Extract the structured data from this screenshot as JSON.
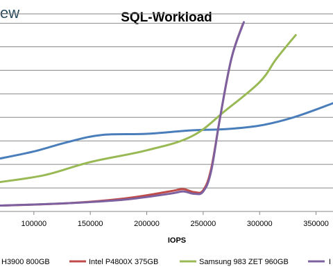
{
  "logo": {
    "text": "ew"
  },
  "chart_data": {
    "type": "line",
    "title": "SQL-Workload",
    "xlabel": "IOPS",
    "ylabel": "",
    "xlim": [
      70000,
      365000
    ],
    "ylim": [
      0,
      8.4
    ],
    "grid": true,
    "legend_position": "bottom",
    "x_ticks": [
      100000,
      150000,
      200000,
      250000,
      300000,
      350000
    ],
    "x_tick_labels": [
      "100000",
      "150000",
      "200000",
      "250000",
      "300000",
      "350000"
    ],
    "y_gridlines": [
      1,
      2,
      3,
      4,
      5,
      6,
      7,
      8
    ],
    "series": [
      {
        "name": "H3900 800GB",
        "color": "#4a7ebb",
        "x": [
          70000,
          100000,
          130000,
          160000,
          200000,
          240000,
          270000,
          300000,
          330000,
          365000
        ],
        "y": [
          2.25,
          2.55,
          2.95,
          3.25,
          3.3,
          3.45,
          3.5,
          3.65,
          4.0,
          4.6
        ]
      },
      {
        "name": "Intel P4800X 375GB",
        "color": "#be4b48",
        "x": [
          70000,
          130000,
          180000,
          220000,
          232000,
          242000,
          250000,
          257000,
          265000,
          275000,
          285000
        ],
        "y": [
          0.25,
          0.35,
          0.55,
          0.85,
          0.95,
          0.82,
          0.9,
          1.8,
          4.0,
          6.5,
          7.95
        ]
      },
      {
        "name": "Samsung 983 ZET 960GB",
        "color": "#98b954",
        "x": [
          70000,
          110000,
          150000,
          200000,
          240000,
          270000,
          300000,
          315000,
          332000
        ],
        "y": [
          1.25,
          1.55,
          2.1,
          2.6,
          3.2,
          4.3,
          5.5,
          6.5,
          7.5
        ]
      },
      {
        "name": "I",
        "color": "#7d60a0",
        "x": [
          70000,
          130000,
          180000,
          220000,
          232000,
          242000,
          250000,
          257000,
          265000,
          275000,
          286000
        ],
        "y": [
          0.25,
          0.35,
          0.5,
          0.75,
          0.85,
          0.75,
          0.85,
          1.7,
          4.0,
          6.5,
          8.05
        ]
      }
    ]
  }
}
